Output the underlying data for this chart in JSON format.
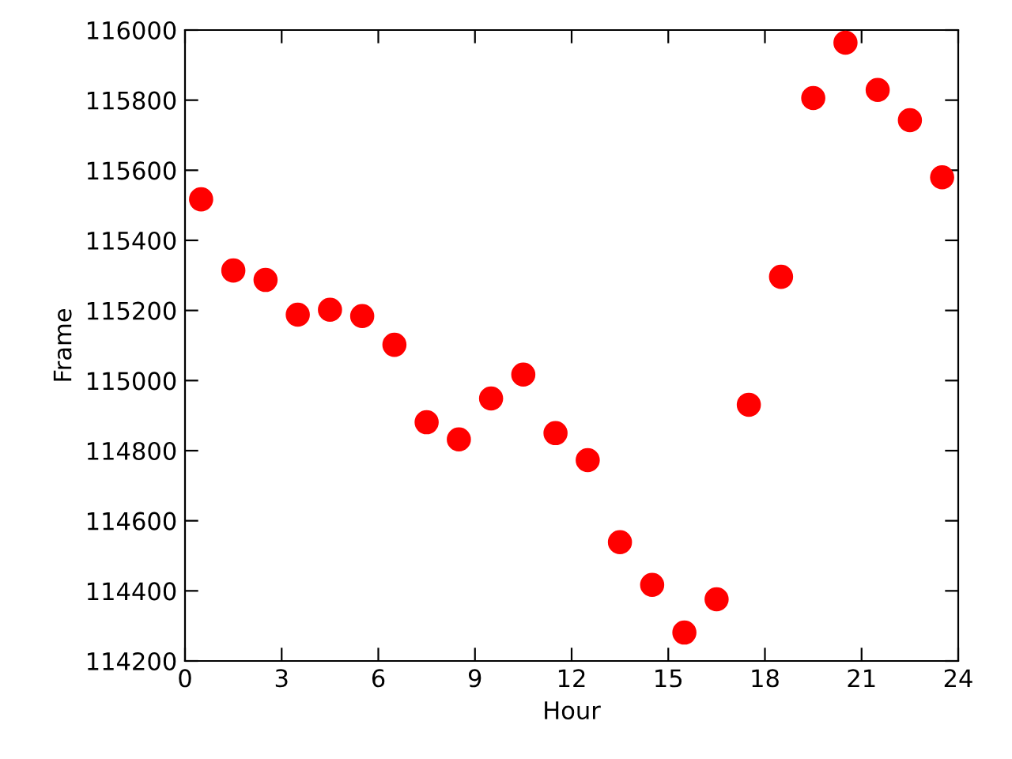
{
  "chart_data": {
    "type": "scatter",
    "xlabel": "Hour",
    "ylabel": "Frame",
    "x": [
      0.5,
      1.5,
      2.5,
      3.5,
      4.5,
      5.5,
      6.5,
      7.5,
      8.5,
      9.5,
      10.5,
      11.5,
      12.5,
      13.5,
      14.5,
      15.5,
      16.5,
      17.5,
      18.5,
      19.5,
      20.5,
      21.5,
      22.5,
      23.5
    ],
    "series": [
      {
        "color": "#ff0000",
        "values": [
          115517,
          115314,
          115287,
          115188,
          115202,
          115184,
          115102,
          114881,
          114832,
          114949,
          115017,
          114850,
          114773,
          114539,
          114417,
          114281,
          114376,
          114931,
          115296,
          115806,
          115964,
          115829,
          115743,
          115580
        ]
      }
    ],
    "marker": "circle",
    "grid": false,
    "legend": false,
    "xlim": [
      0,
      24
    ],
    "xticks": [
      0,
      3,
      6,
      9,
      12,
      15,
      18,
      21,
      24
    ],
    "ylim": [
      114200,
      116000
    ],
    "yticks": [
      114200,
      114400,
      114600,
      114800,
      115000,
      115200,
      115400,
      115600,
      115800,
      116000
    ]
  }
}
